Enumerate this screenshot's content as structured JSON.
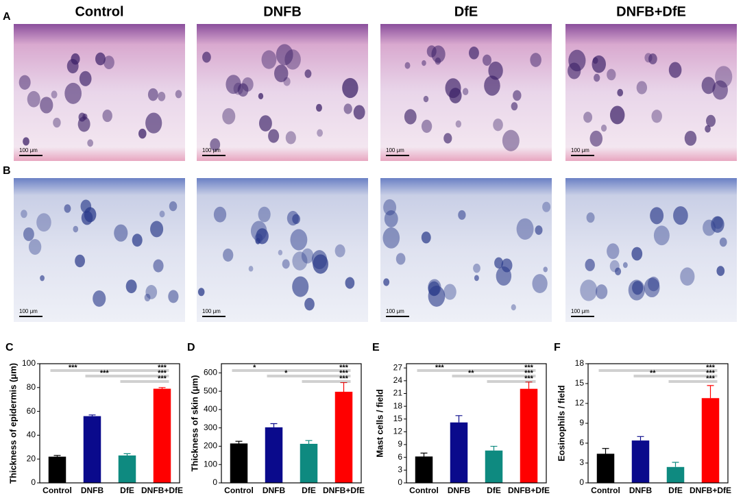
{
  "figure": {
    "row_labels": [
      "A",
      "B"
    ],
    "columns": [
      "Control",
      "DNFB",
      "DfE",
      "DNFB+DfE"
    ],
    "scale_bar": "100 μm"
  },
  "chart_data": [
    {
      "panel": "C",
      "type": "bar",
      "ylabel": "Thickness of epidermis (μm)",
      "categories": [
        "Control",
        "DNFB",
        "DfE",
        "DNFB+DfE"
      ],
      "values": [
        22,
        56,
        23,
        79
      ],
      "errors": [
        1,
        1,
        1.5,
        1
      ],
      "colors": [
        "#000000",
        "#0a0a8c",
        "#0e8a80",
        "#ff0000"
      ],
      "ylim": [
        0,
        100
      ],
      "yticks": [
        0,
        20,
        40,
        60,
        80,
        100
      ],
      "comparisons": [
        {
          "from": 0,
          "to": 3,
          "label": "***"
        },
        {
          "from": 1,
          "to": 3,
          "label": "***"
        },
        {
          "from": 2,
          "to": 3
        }
      ],
      "right_labels": [
        "***",
        "***",
        "***"
      ]
    },
    {
      "panel": "D",
      "type": "bar",
      "ylabel": "Thickness of skin (μm)",
      "categories": [
        "Control",
        "DNFB",
        "DfE",
        "DNFB+DfE"
      ],
      "values": [
        215,
        303,
        213,
        497
      ],
      "errors": [
        12,
        20,
        18,
        50
      ],
      "colors": [
        "#000000",
        "#0a0a8c",
        "#0e8a80",
        "#ff0000"
      ],
      "ylim": [
        0,
        650
      ],
      "yticks": [
        0,
        100,
        200,
        300,
        400,
        500,
        600
      ],
      "comparisons": [
        {
          "from": 0,
          "to": 3,
          "label": "*"
        },
        {
          "from": 1,
          "to": 3,
          "label": "*"
        },
        {
          "from": 2,
          "to": 3
        }
      ],
      "right_labels": [
        "***",
        "***",
        "***"
      ]
    },
    {
      "panel": "E",
      "type": "bar",
      "ylabel": "Mast cells / field",
      "categories": [
        "Control",
        "DNFB",
        "DfE",
        "DNFB+DfE"
      ],
      "values": [
        6.2,
        14.2,
        7.6,
        22.1
      ],
      "errors": [
        0.8,
        1.6,
        1.0,
        1.6
      ],
      "colors": [
        "#000000",
        "#0a0a8c",
        "#0e8a80",
        "#ff0000"
      ],
      "ylim": [
        0,
        28
      ],
      "yticks": [
        0,
        3,
        6,
        9,
        12,
        15,
        18,
        21,
        24,
        27
      ],
      "comparisons": [
        {
          "from": 0,
          "to": 3,
          "label": "***"
        },
        {
          "from": 1,
          "to": 3,
          "label": "**"
        },
        {
          "from": 2,
          "to": 3
        }
      ],
      "right_labels": [
        "***",
        "***",
        "***"
      ]
    },
    {
      "panel": "F",
      "type": "bar",
      "ylabel": "Eosinophils / field",
      "categories": [
        "Control",
        "DNFB",
        "DfE",
        "DNFB+DfE"
      ],
      "values": [
        4.4,
        6.4,
        2.4,
        12.8
      ],
      "errors": [
        0.8,
        0.6,
        0.7,
        1.9
      ],
      "colors": [
        "#000000",
        "#0a0a8c",
        "#0e8a80",
        "#ff0000"
      ],
      "ylim": [
        0,
        18
      ],
      "yticks": [
        0,
        3,
        6,
        9,
        12,
        15,
        18
      ],
      "comparisons": [
        {
          "from": 0,
          "to": 3
        },
        {
          "from": 1,
          "to": 3,
          "label": "**"
        },
        {
          "from": 2,
          "to": 3
        }
      ],
      "right_labels": [
        "***",
        "***",
        "***"
      ]
    }
  ]
}
